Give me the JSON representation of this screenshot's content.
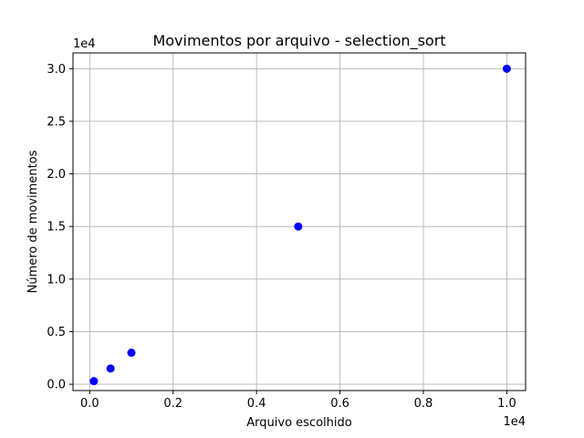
{
  "chart_data": {
    "type": "scatter",
    "title": "Movimentos por arquivo - selection_sort",
    "xlabel": "Arquivo escolhido",
    "ylabel": "Número de movimentos",
    "x_offset_label": "1e4",
    "y_offset_label": "1e4",
    "xlim": [
      -400,
      10450
    ],
    "ylim": [
      -600,
      31500
    ],
    "x_ticks": [
      0,
      2000,
      4000,
      6000,
      8000,
      10000
    ],
    "x_tick_labels": [
      "0.0",
      "0.2",
      "0.4",
      "0.6",
      "0.8",
      "1.0"
    ],
    "y_ticks": [
      0,
      5000,
      10000,
      15000,
      20000,
      25000,
      30000
    ],
    "y_tick_labels": [
      "0.0",
      "0.5",
      "1.0",
      "1.5",
      "2.0",
      "2.5",
      "3.0"
    ],
    "grid": true,
    "series": [
      {
        "color": "#0000ff",
        "x": [
          100,
          500,
          1000,
          5000,
          10000
        ],
        "y": [
          297,
          1497,
          2997,
          14997,
          29997
        ]
      }
    ]
  }
}
